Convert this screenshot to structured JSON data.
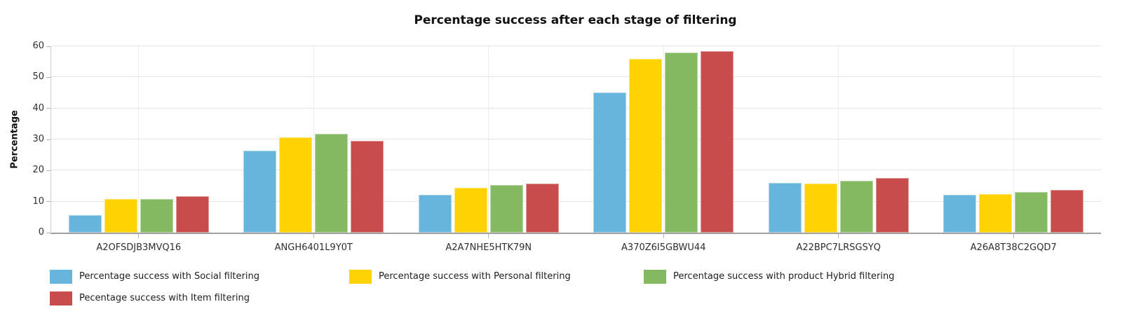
{
  "chart_data": {
    "type": "bar",
    "title": "Percentage success after each stage of filtering",
    "xlabel": "",
    "ylabel": "Percentage",
    "ylim": [
      0,
      60
    ],
    "y_ticks": [
      0,
      10,
      20,
      30,
      40,
      50,
      60
    ],
    "grid": true,
    "legend_position": "bottom-left",
    "categories": [
      "A2OFSDJB3MVQ16",
      "ANGH6401L9Y0T",
      "A2A7NHE5HTK79N",
      "A370Z6I5GBWU44",
      "A22BPC7LRSGSYQ",
      "A26A8T38C2GQD7"
    ],
    "series": [
      {
        "name": "Percentage success with Social filtering",
        "color": "#67B4DC",
        "values": [
          5.6,
          26.3,
          12.1,
          45.2,
          16.0,
          12.1
        ]
      },
      {
        "name": "Percentage success with Personal filtering",
        "color": "#FFD203",
        "values": [
          10.8,
          30.6,
          14.5,
          55.9,
          15.8,
          12.5
        ]
      },
      {
        "name": "Percentage success with product Hybrid filtering",
        "color": "#84B861",
        "values": [
          10.8,
          31.9,
          15.3,
          58.0,
          16.8,
          13.0
        ]
      },
      {
        "name": "Pecentage success with Item filtering",
        "color": "#C84C4B",
        "values": [
          11.7,
          29.6,
          15.7,
          58.5,
          17.6,
          13.7
        ]
      }
    ]
  }
}
